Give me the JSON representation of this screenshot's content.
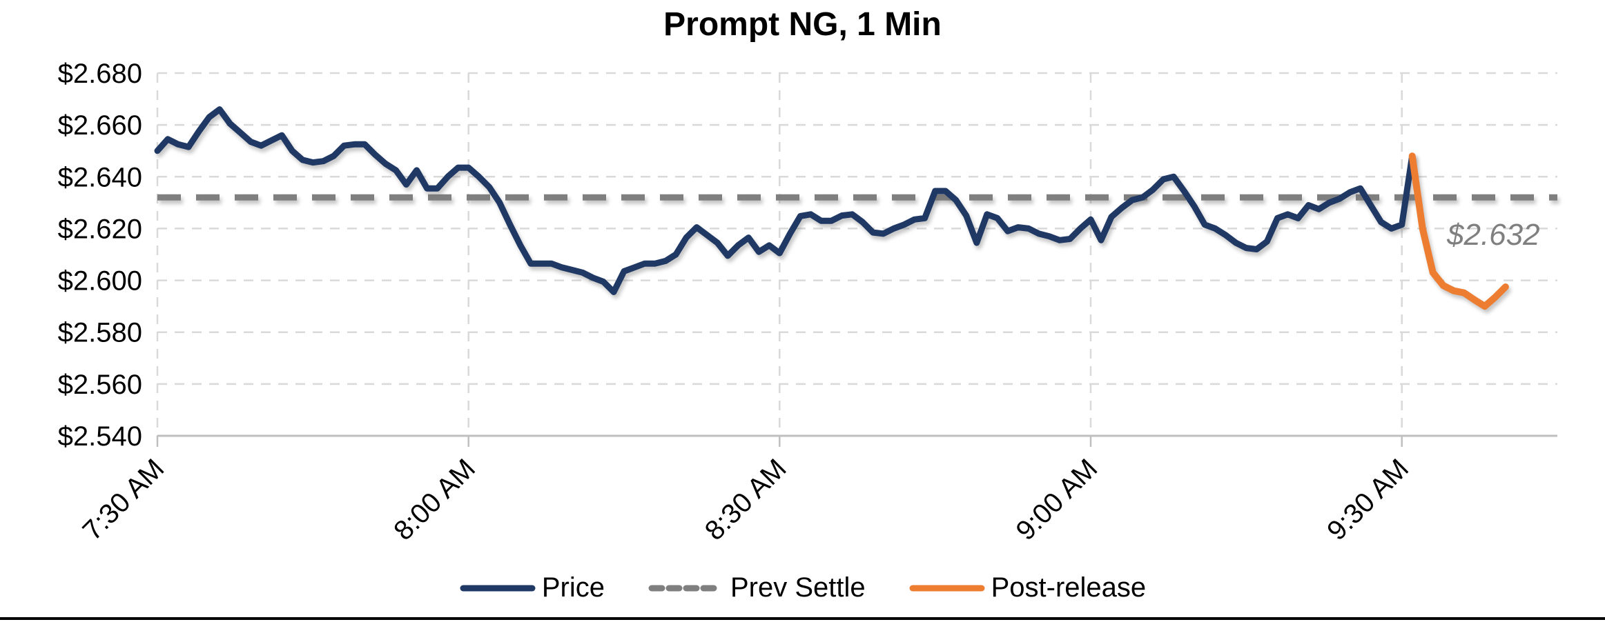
{
  "title": "Prompt NG, 1 Min",
  "annotation": {
    "text": "$2.632"
  },
  "legend": [
    {
      "label": "Price",
      "style": "solid",
      "color": "#1F3864"
    },
    {
      "label": "Prev Settle",
      "style": "dashed",
      "color": "#7F7F7F"
    },
    {
      "label": "Post-release",
      "style": "solid",
      "color": "#ED7D31"
    }
  ],
  "colors": {
    "price_line": "#1F3864",
    "post_release_line": "#ED7D31",
    "prev_settle_line": "#7F7F7F",
    "gridline": "#D9D9D9",
    "axis_line": "#BFBFBF",
    "annotation_text": "#7F7F7F",
    "background": "#FFFFFF"
  },
  "chart_data": {
    "type": "line",
    "title": "Prompt NG, 1 Min",
    "xlabel": "",
    "ylabel": "",
    "x_unit": "minutes after 7:30 AM, 1-minute bars",
    "grid": true,
    "legend_position": "bottom",
    "ylim": [
      2.54,
      2.68
    ],
    "xlim_minutes": [
      0,
      135
    ],
    "y_ticks": [
      {
        "value": 2.68,
        "label": "$2.680"
      },
      {
        "value": 2.66,
        "label": "$2.660"
      },
      {
        "value": 2.64,
        "label": "$2.640"
      },
      {
        "value": 2.62,
        "label": "$2.620"
      },
      {
        "value": 2.6,
        "label": "$2.600"
      },
      {
        "value": 2.58,
        "label": "$2.580"
      },
      {
        "value": 2.56,
        "label": "$2.560"
      },
      {
        "value": 2.54,
        "label": "$2.540"
      }
    ],
    "x_ticks": [
      {
        "minute": 0,
        "label": "7:30 AM"
      },
      {
        "minute": 30,
        "label": "8:00 AM"
      },
      {
        "minute": 60,
        "label": "8:30 AM"
      },
      {
        "minute": 90,
        "label": "9:00 AM"
      },
      {
        "minute": 120,
        "label": "9:30 AM"
      }
    ],
    "prev_settle": 2.632,
    "series": [
      {
        "name": "Price",
        "color": "#1F3864",
        "style": "solid",
        "start_minute": 0,
        "values": [
          2.65,
          2.6545,
          2.6525,
          2.6515,
          2.6575,
          2.663,
          2.666,
          2.6605,
          2.657,
          2.6535,
          2.652,
          2.654,
          2.656,
          2.65,
          2.6465,
          2.6455,
          2.646,
          2.648,
          2.652,
          2.6525,
          2.6525,
          2.6485,
          2.645,
          2.6425,
          2.637,
          2.6425,
          2.6355,
          2.6355,
          2.64,
          2.6435,
          2.6435,
          2.64,
          2.636,
          2.63,
          2.6215,
          2.6135,
          2.6065,
          2.6065,
          2.6065,
          2.605,
          2.604,
          2.603,
          2.601,
          2.5995,
          2.5955,
          2.6035,
          2.605,
          2.6065,
          2.6065,
          2.6075,
          2.61,
          2.6165,
          2.6205,
          2.6175,
          2.6145,
          2.6095,
          2.6135,
          2.6165,
          2.611,
          2.6135,
          2.6105,
          2.618,
          2.6248,
          2.6255,
          2.623,
          2.623,
          2.625,
          2.6255,
          2.6225,
          2.6185,
          2.618,
          2.62,
          2.6215,
          2.6235,
          2.624,
          2.6345,
          2.6345,
          2.631,
          2.625,
          2.6145,
          2.6255,
          2.624,
          2.619,
          2.6205,
          2.62,
          2.618,
          2.617,
          2.6155,
          2.616,
          2.62,
          2.6235,
          2.6155,
          2.6245,
          2.628,
          2.631,
          2.632,
          2.635,
          2.639,
          2.64,
          2.6345,
          2.6285,
          2.6215,
          2.62,
          2.6175,
          2.6145,
          2.6125,
          2.612,
          2.615,
          2.624,
          2.6255,
          2.624,
          2.629,
          2.6275,
          2.63,
          2.6315,
          2.634,
          2.6355,
          2.629,
          2.6225,
          2.62,
          2.6215,
          2.648
        ]
      },
      {
        "name": "Post-release",
        "color": "#ED7D31",
        "style": "solid",
        "start_minute": 121,
        "values": [
          2.648,
          2.62,
          2.603,
          2.598,
          2.596,
          2.5952,
          2.5925,
          2.59,
          2.5935,
          2.5975
        ]
      },
      {
        "name": "Prev Settle",
        "color": "#7F7F7F",
        "style": "dashed",
        "constant_value": 2.632
      }
    ],
    "annotations": [
      {
        "text": "$2.632",
        "value": 2.632,
        "color": "#7F7F7F",
        "style": "italic"
      }
    ]
  }
}
